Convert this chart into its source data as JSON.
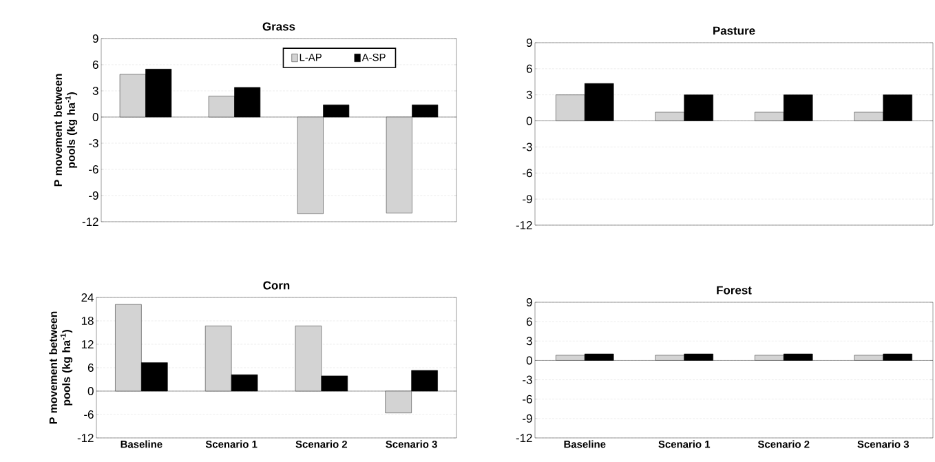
{
  "chart_data": [
    {
      "type": "bar",
      "title": "Grass",
      "ylabel": "P movement between pools (kg ha$^{-1}$)",
      "categories": [
        null,
        null,
        null,
        null
      ],
      "ylim": [
        -12,
        9
      ],
      "yticks": [
        -12,
        -9,
        -6,
        -3,
        0,
        3,
        6,
        9
      ],
      "grid": "y",
      "legend": "top right",
      "series": [
        {
          "name": "L-AP",
          "color": "#d3d3d3",
          "values": [
            4.9,
            2.4,
            -11.1,
            -11.0
          ]
        },
        {
          "name": "A-SP",
          "color": "#000000",
          "values": [
            5.5,
            3.4,
            1.4,
            1.4
          ]
        }
      ]
    },
    {
      "type": "bar",
      "title": "Pasture",
      "categories": [
        null,
        null,
        null,
        null
      ],
      "ylim": [
        -12,
        9
      ],
      "yticks": [
        -12,
        -9,
        -6,
        -3,
        0,
        3,
        6,
        9
      ],
      "grid": "y",
      "series": [
        {
          "color": "#d3d3d3",
          "values": [
            3.0,
            1.0,
            1.0,
            1.0
          ]
        },
        {
          "color": "#000000",
          "values": [
            4.3,
            3.0,
            3.0,
            3.0
          ]
        }
      ]
    },
    {
      "type": "bar",
      "title": "Corn",
      "ylabel": "P movement between pools (kg ha$^{-1}$)",
      "categories": [
        "Baseline",
        "Scenario 1",
        "Scenario 2",
        "Scenario 3"
      ],
      "ylim": [
        -12,
        24
      ],
      "yticks": [
        -12,
        -6,
        0,
        6,
        12,
        18,
        24
      ],
      "grid": "y",
      "series": [
        {
          "color": "#d3d3d3",
          "values": [
            22.2,
            16.7,
            16.7,
            -5.6
          ]
        },
        {
          "color": "#000000",
          "values": [
            7.3,
            4.2,
            3.9,
            5.3
          ]
        }
      ]
    },
    {
      "type": "bar",
      "title": "Forest",
      "categories": [
        "Baseline",
        "Scenario 1",
        "Scenario 2",
        "Scenario 3"
      ],
      "ylim": [
        -12,
        9
      ],
      "yticks": [
        -12,
        -9,
        -6,
        -3,
        0,
        3,
        6,
        9
      ],
      "grid": "y",
      "series": [
        {
          "color": "#d3d3d3",
          "values": [
            0.8,
            0.8,
            0.8,
            0.8
          ]
        },
        {
          "color": "#000000",
          "values": [
            1.0,
            1.0,
            1.0,
            1.0
          ]
        }
      ]
    }
  ]
}
